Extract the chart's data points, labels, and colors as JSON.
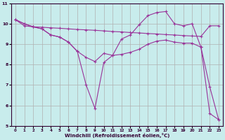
{
  "xlabel": "Windchill (Refroidissement éolien,°C)",
  "background_color": "#c8ecec",
  "grid_color": "#b0b0b0",
  "line_color": "#993399",
  "xlim": [
    -0.5,
    23.5
  ],
  "ylim": [
    5,
    11
  ],
  "yticks": [
    5,
    6,
    7,
    8,
    9,
    10,
    11
  ],
  "xticks": [
    0,
    1,
    2,
    3,
    4,
    5,
    6,
    7,
    8,
    9,
    10,
    11,
    12,
    13,
    14,
    15,
    16,
    17,
    18,
    19,
    20,
    21,
    22,
    23
  ],
  "series1_x": [
    0,
    1,
    2,
    3,
    4,
    5,
    6,
    7,
    8,
    9,
    10,
    11,
    12,
    13,
    14,
    15,
    16,
    17,
    18,
    19,
    20,
    21,
    22,
    23
  ],
  "series1_y": [
    10.2,
    9.9,
    9.85,
    9.83,
    9.8,
    9.78,
    9.75,
    9.72,
    9.7,
    9.68,
    9.65,
    9.62,
    9.6,
    9.57,
    9.55,
    9.52,
    9.5,
    9.47,
    9.45,
    9.42,
    9.4,
    9.38,
    9.9,
    9.9
  ],
  "series2_x": [
    0,
    1,
    2,
    3,
    4,
    5,
    6,
    7,
    8,
    9,
    10,
    11,
    12,
    13,
    14,
    15,
    16,
    17,
    18,
    19,
    20,
    21,
    22,
    23
  ],
  "series2_y": [
    10.2,
    10.0,
    9.85,
    9.75,
    9.45,
    9.35,
    9.1,
    8.65,
    8.35,
    8.15,
    8.55,
    8.45,
    8.5,
    8.6,
    8.75,
    9.0,
    9.15,
    9.2,
    9.1,
    9.05,
    9.05,
    8.85,
    5.6,
    5.3
  ],
  "series3_x": [
    0,
    1,
    2,
    3,
    4,
    5,
    6,
    7,
    8,
    9,
    10,
    11,
    12,
    13,
    14,
    15,
    16,
    17,
    18,
    19,
    20,
    21,
    22,
    23
  ],
  "series3_y": [
    10.2,
    10.0,
    9.85,
    9.75,
    9.45,
    9.35,
    9.1,
    8.65,
    7.0,
    5.85,
    8.1,
    8.45,
    9.25,
    9.45,
    9.95,
    10.4,
    10.55,
    10.6,
    10.0,
    9.9,
    10.0,
    8.85,
    6.9,
    5.3
  ]
}
